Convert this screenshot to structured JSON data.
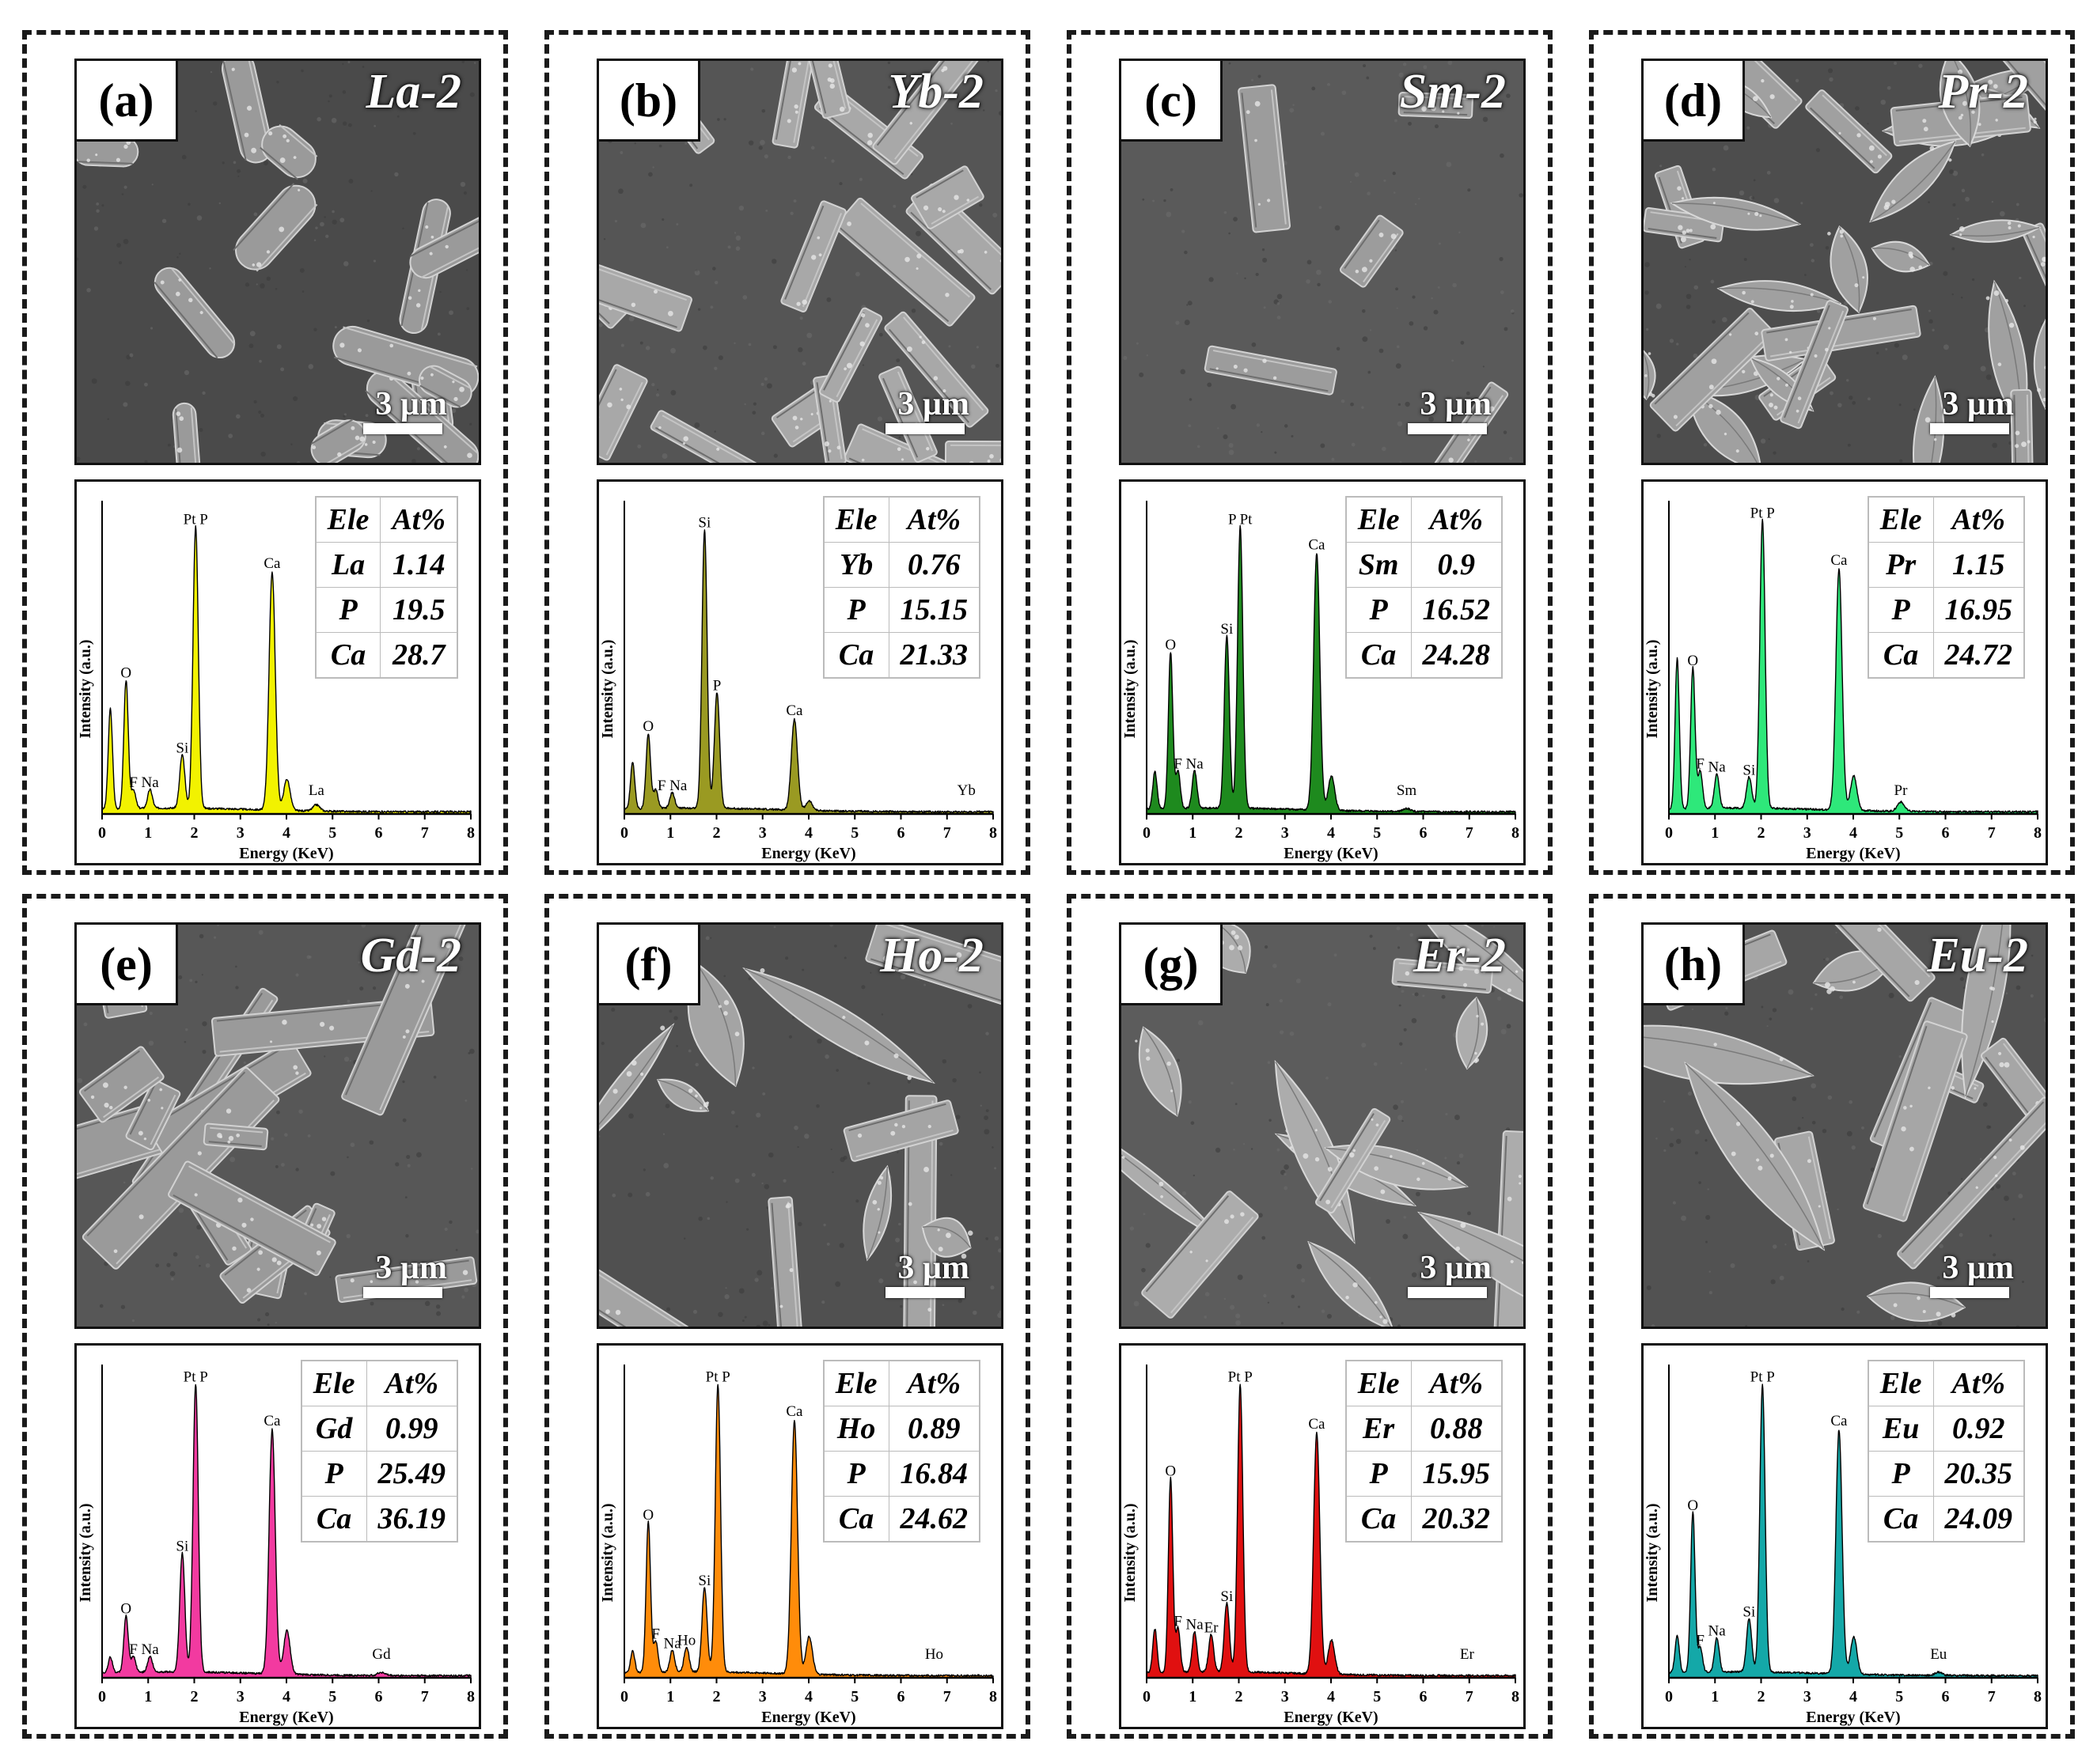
{
  "panels": [
    {
      "letter": "(a)",
      "sample": "La-2",
      "scale": "3 µm",
      "element": "La",
      "color": "#f2f200",
      "italic_labels": false,
      "table": [
        [
          "Ele",
          "At%"
        ],
        [
          "La",
          "1.14"
        ],
        [
          "P",
          "19.5"
        ],
        [
          "Ca",
          "28.7"
        ]
      ]
    },
    {
      "letter": "(b)",
      "sample": "Yb-2",
      "scale": "3 µm",
      "element": "Yb",
      "color": "#9a9a22",
      "italic_labels": false,
      "table": [
        [
          "Ele",
          "At%"
        ],
        [
          "Yb",
          "0.76"
        ],
        [
          "P",
          "15.15"
        ],
        [
          "Ca",
          "21.33"
        ]
      ]
    },
    {
      "letter": "(c)",
      "sample": "Sm-2",
      "scale": "3 µm",
      "element": "Sm",
      "color": "#1e8a1e",
      "italic_labels": true,
      "table": [
        [
          "Ele",
          "At%"
        ],
        [
          "Sm",
          "0.9"
        ],
        [
          "P",
          "16.52"
        ],
        [
          "Ca",
          "24.28"
        ]
      ]
    },
    {
      "letter": "(d)",
      "sample": "Pr-2",
      "scale": "3 µm",
      "element": "Pr",
      "color": "#2ee87a",
      "italic_labels": true,
      "table": [
        [
          "Ele",
          "At%"
        ],
        [
          "Pr",
          "1.15"
        ],
        [
          "P",
          "16.95"
        ],
        [
          "Ca",
          "24.72"
        ]
      ]
    },
    {
      "letter": "(e)",
      "sample": "Gd-2",
      "scale": "3 µm",
      "element": "Gd",
      "color": "#f23aa0",
      "italic_labels": true,
      "table": [
        [
          "Ele",
          "At%"
        ],
        [
          "Gd",
          "0.99"
        ],
        [
          "P",
          "25.49"
        ],
        [
          "Ca",
          "36.19"
        ]
      ]
    },
    {
      "letter": "(f)",
      "sample": "Ho-2",
      "scale": "3 µm",
      "element": "Ho",
      "color": "#ff8c0a",
      "italic_labels": true,
      "table": [
        [
          "Ele",
          "At%"
        ],
        [
          "Ho",
          "0.89"
        ],
        [
          "P",
          "16.84"
        ],
        [
          "Ca",
          "24.62"
        ]
      ]
    },
    {
      "letter": "(g)",
      "sample": "Er-2",
      "scale": "3 µm",
      "element": "Er",
      "color": "#e01010",
      "italic_labels": true,
      "table": [
        [
          "Ele",
          "At%"
        ],
        [
          "Er",
          "0.88"
        ],
        [
          "P",
          "15.95"
        ],
        [
          "Ca",
          "20.32"
        ]
      ]
    },
    {
      "letter": "(h)",
      "sample": "Eu-2",
      "scale": "3 µm",
      "element": "Eu",
      "color": "#14a8a8",
      "italic_labels": true,
      "table": [
        [
          "Ele",
          "At%"
        ],
        [
          "Eu",
          "0.92"
        ],
        [
          "P",
          "20.35"
        ],
        [
          "Ca",
          "24.09"
        ]
      ]
    }
  ],
  "chart_data": [
    {
      "type": "area",
      "panel": "(a)",
      "xlabel": "Energy (KeV)",
      "ylabel": "Intensity (a.u.)",
      "xlim": [
        0,
        8
      ],
      "xticks": [
        0,
        1,
        2,
        3,
        4,
        5,
        6,
        7,
        8
      ],
      "peaks": [
        {
          "label": "O",
          "energy": 0.52,
          "height": 0.41
        },
        {
          "label": "F",
          "energy": 0.68,
          "height": 0.06
        },
        {
          "label": "Na",
          "energy": 1.04,
          "height": 0.06
        },
        {
          "label": "Si",
          "energy": 1.74,
          "height": 0.17
        },
        {
          "label": "Pt P",
          "energy": 2.03,
          "height": 0.9
        },
        {
          "label": "Ca",
          "energy": 3.69,
          "height": 0.76
        },
        {
          "label": "La",
          "energy": 4.65,
          "height": 0.02
        }
      ],
      "minor_peaks": [
        {
          "energy": 0.18,
          "height": 0.32
        },
        {
          "energy": 4.01,
          "height": 0.1
        }
      ]
    },
    {
      "type": "area",
      "panel": "(b)",
      "xlabel": "Energy (KeV)",
      "ylabel": "Intensity (a.u.)",
      "xlim": [
        0,
        8
      ],
      "xticks": [
        0,
        1,
        2,
        3,
        4,
        5,
        6,
        7,
        8
      ],
      "peaks": [
        {
          "label": "O",
          "energy": 0.52,
          "height": 0.24
        },
        {
          "label": "F Na",
          "energy": 1.04,
          "height": 0.05
        },
        {
          "label": "Si",
          "energy": 1.74,
          "height": 0.89
        },
        {
          "label": "P",
          "energy": 2.01,
          "height": 0.37
        },
        {
          "label": "Ca",
          "energy": 3.69,
          "height": 0.29
        },
        {
          "label": "Yb",
          "energy": 7.42,
          "height": 0.0
        }
      ],
      "minor_peaks": [
        {
          "energy": 0.18,
          "height": 0.15
        },
        {
          "energy": 0.68,
          "height": 0.06
        },
        {
          "energy": 4.01,
          "height": 0.03
        }
      ]
    },
    {
      "type": "area",
      "panel": "(c)",
      "xlabel": "Energy (KeV)",
      "ylabel": "Intensity (a.u.)",
      "xlim": [
        0,
        8
      ],
      "xticks": [
        0,
        1,
        2,
        3,
        4,
        5,
        6,
        7,
        8
      ],
      "peaks": [
        {
          "label": "O",
          "energy": 0.52,
          "height": 0.5
        },
        {
          "label": "F",
          "energy": 0.68,
          "height": 0.12
        },
        {
          "label": "Na",
          "energy": 1.04,
          "height": 0.12
        },
        {
          "label": "Si",
          "energy": 1.74,
          "height": 0.55
        },
        {
          "label": "P Pt",
          "energy": 2.03,
          "height": 0.9
        },
        {
          "label": "Ca",
          "energy": 3.69,
          "height": 0.82
        },
        {
          "label": "Sm",
          "energy": 5.64,
          "height": 0.01
        }
      ],
      "minor_peaks": [
        {
          "energy": 0.18,
          "height": 0.12
        },
        {
          "energy": 4.01,
          "height": 0.11
        }
      ]
    },
    {
      "type": "area",
      "panel": "(d)",
      "xlabel": "Energy (KeV)",
      "ylabel": "Intensity (a.u.)",
      "xlim": [
        0,
        8
      ],
      "xticks": [
        0,
        1,
        2,
        3,
        4,
        5,
        6,
        7,
        8
      ],
      "peaks": [
        {
          "label": "O",
          "energy": 0.52,
          "height": 0.45
        },
        {
          "label": "F",
          "energy": 0.68,
          "height": 0.12
        },
        {
          "label": "Na",
          "energy": 1.04,
          "height": 0.11
        },
        {
          "label": "Si",
          "energy": 1.74,
          "height": 0.1
        },
        {
          "label": "Pt P",
          "energy": 2.03,
          "height": 0.92
        },
        {
          "label": "Ca",
          "energy": 3.69,
          "height": 0.77
        },
        {
          "label": "Pr",
          "energy": 5.03,
          "height": 0.03
        }
      ],
      "minor_peaks": [
        {
          "energy": 0.18,
          "height": 0.48
        },
        {
          "energy": 4.01,
          "height": 0.11
        }
      ]
    },
    {
      "type": "area",
      "panel": "(e)",
      "xlabel": "Energy (KeV)",
      "ylabel": "Intensity (a.u.)",
      "xlim": [
        0,
        8
      ],
      "xticks": [
        0,
        1,
        2,
        3,
        4,
        5,
        6,
        7,
        8
      ],
      "peaks": [
        {
          "label": "O",
          "energy": 0.52,
          "height": 0.18
        },
        {
          "label": "F",
          "energy": 0.68,
          "height": 0.05
        },
        {
          "label": "Na",
          "energy": 1.04,
          "height": 0.05
        },
        {
          "label": "Si",
          "energy": 1.74,
          "height": 0.38
        },
        {
          "label": "Pt P",
          "energy": 2.03,
          "height": 0.92
        },
        {
          "label": "Ca",
          "energy": 3.69,
          "height": 0.78
        },
        {
          "label": "Gd",
          "energy": 6.06,
          "height": 0.01
        }
      ],
      "minor_peaks": [
        {
          "energy": 0.18,
          "height": 0.05
        },
        {
          "energy": 4.01,
          "height": 0.14
        }
      ]
    },
    {
      "type": "area",
      "panel": "(f)",
      "xlabel": "Energy (KeV)",
      "ylabel": "Intensity (a.u.)",
      "xlim": [
        0,
        8
      ],
      "xticks": [
        0,
        1,
        2,
        3,
        4,
        5,
        6,
        7,
        8
      ],
      "peaks": [
        {
          "label": "O",
          "energy": 0.52,
          "height": 0.48
        },
        {
          "label": "F",
          "energy": 0.68,
          "height": 0.1
        },
        {
          "label": "Na",
          "energy": 1.04,
          "height": 0.07
        },
        {
          "label": "Ho",
          "energy": 1.35,
          "height": 0.08
        },
        {
          "label": "Si",
          "energy": 1.74,
          "height": 0.27
        },
        {
          "label": "Pt P",
          "energy": 2.03,
          "height": 0.92
        },
        {
          "label": "Ca",
          "energy": 3.69,
          "height": 0.81
        },
        {
          "label": "Ho",
          "energy": 6.72,
          "height": 0.0
        }
      ],
      "minor_peaks": [
        {
          "energy": 0.18,
          "height": 0.07
        },
        {
          "energy": 4.01,
          "height": 0.12
        }
      ]
    },
    {
      "type": "area",
      "panel": "(g)",
      "xlabel": "Energy (KeV)",
      "ylabel": "Intensity (a.u.)",
      "xlim": [
        0,
        8
      ],
      "xticks": [
        0,
        1,
        2,
        3,
        4,
        5,
        6,
        7,
        8
      ],
      "peaks": [
        {
          "label": "O",
          "energy": 0.52,
          "height": 0.62
        },
        {
          "label": "F",
          "energy": 0.68,
          "height": 0.14
        },
        {
          "label": "Na",
          "energy": 1.04,
          "height": 0.13
        },
        {
          "label": "Er",
          "energy": 1.4,
          "height": 0.12
        },
        {
          "label": "Si",
          "energy": 1.74,
          "height": 0.22
        },
        {
          "label": "Pt P",
          "energy": 2.03,
          "height": 0.92
        },
        {
          "label": "Ca",
          "energy": 3.69,
          "height": 0.77
        },
        {
          "label": "Er",
          "energy": 6.95,
          "height": 0.0
        }
      ],
      "minor_peaks": [
        {
          "energy": 0.18,
          "height": 0.14
        },
        {
          "energy": 4.01,
          "height": 0.11
        }
      ]
    },
    {
      "type": "area",
      "panel": "(h)",
      "xlabel": "Energy (KeV)",
      "ylabel": "Intensity (a.u.)",
      "xlim": [
        0,
        8
      ],
      "xticks": [
        0,
        1,
        2,
        3,
        4,
        5,
        6,
        7,
        8
      ],
      "peaks": [
        {
          "label": "O",
          "energy": 0.52,
          "height": 0.51
        },
        {
          "label": "F",
          "energy": 0.68,
          "height": 0.08
        },
        {
          "label": "Na",
          "energy": 1.04,
          "height": 0.11
        },
        {
          "label": "Si",
          "energy": 1.74,
          "height": 0.17
        },
        {
          "label": "Pt P",
          "energy": 2.03,
          "height": 0.92
        },
        {
          "label": "Ca",
          "energy": 3.69,
          "height": 0.78
        },
        {
          "label": "Eu",
          "energy": 5.85,
          "height": 0.01
        }
      ],
      "minor_peaks": [
        {
          "energy": 0.18,
          "height": 0.12
        },
        {
          "energy": 4.01,
          "height": 0.12
        }
      ]
    }
  ]
}
